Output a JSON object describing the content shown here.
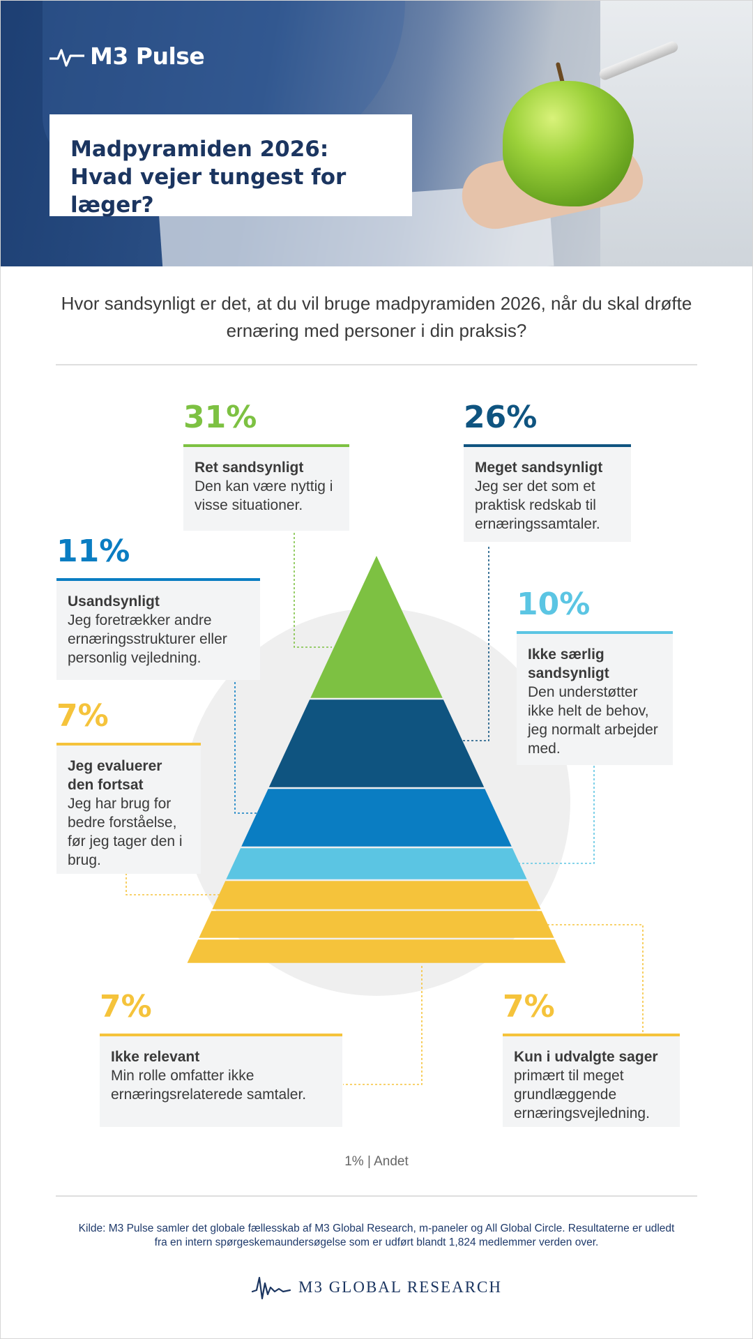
{
  "header": {
    "logo_text": "M3 Pulse",
    "logo_icon": "pulse-wave-icon",
    "title": "Madpyramiden 2026: Hvad vejer tungest for læger?"
  },
  "question": "Hvor sandsynligt er det, at du vil bruge madpyramiden 2026, når du skal drøfte ernæring med personer i din praksis?",
  "chart_data": {
    "type": "pyramid",
    "unit": "%",
    "layers_top_to_bottom": [
      {
        "pct_label": "31%",
        "value": 31,
        "heading": "Ret sandsynligt",
        "description": "Den kan være nyttig i visse situationer.",
        "color": "#7dc142"
      },
      {
        "pct_label": "26%",
        "value": 26,
        "heading": "Meget sandsynligt",
        "description": "Jeg ser det som et praktisk redskab til ernæringssamtaler.",
        "color": "#0f5480"
      },
      {
        "pct_label": "11%",
        "value": 11,
        "heading": "Usandsynligt",
        "description": "Jeg foretrækker andre ernæringsstrukturer eller personlig vejledning.",
        "color": "#0a7dc2"
      },
      {
        "pct_label": "10%",
        "value": 10,
        "heading": "Ikke særlig sandsynligt",
        "description": "Den understøtter ikke helt de behov, jeg normalt arbejder med.",
        "color": "#5bc5e3"
      },
      {
        "pct_label": "7%",
        "value": 7,
        "heading": "Jeg evaluerer den fortsat",
        "description": "Jeg har brug for bedre forståelse, før jeg tager den i brug.",
        "color": "#f5c33b"
      },
      {
        "pct_label": "7%",
        "value": 7,
        "heading": "Kun i udvalgte sager",
        "description": "primært til meget grundlæggende ernæringsvejledning.",
        "color": "#f5c33b"
      },
      {
        "pct_label": "7%",
        "value": 7,
        "heading": "Ikke relevant",
        "description": "Min rolle omfatter ikke ernæringsrelaterede samtaler.",
        "color": "#f5c33b"
      }
    ],
    "other": "1% | Andet"
  },
  "footer": {
    "source": "Kilde: M3 Pulse samler det globale fællesskab af M3 Global Research, m-paneler og All Global Circle. Resultaterne er udledt fra en intern spørgeskemaundersøgelse som er udført blandt 1,824 medlemmer verden over.",
    "brand_text": "M3  GLOBAL RESEARCH",
    "brand_icon": "waveform-icon"
  }
}
